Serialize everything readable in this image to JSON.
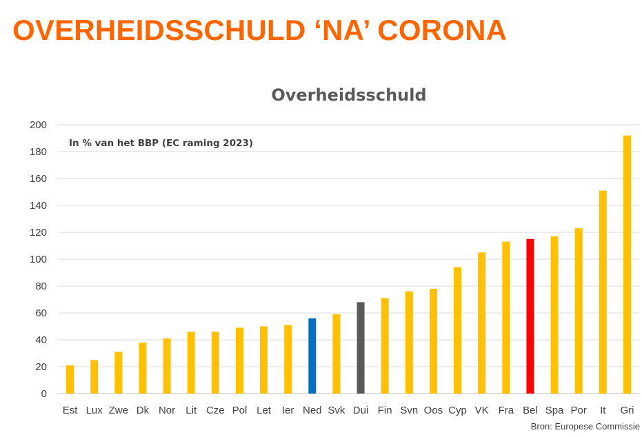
{
  "slide": {
    "title": "OVERHEIDSSCHULD ‘NA’ CORONA",
    "title_color": "#ff6600"
  },
  "chart_data": {
    "type": "bar",
    "title": "Overheidsschuld",
    "annotation": "In % van het BBP (EC raming 2023)",
    "source": "Bron: Europese Commissie",
    "xlabel": "",
    "ylabel": "",
    "ylim": [
      0,
      200
    ],
    "yticks": [
      0,
      20,
      40,
      60,
      80,
      100,
      120,
      140,
      160,
      180,
      200
    ],
    "grid": true,
    "categories": [
      "Est",
      "Lux",
      "Zwe",
      "Dk",
      "Nor",
      "Lit",
      "Cze",
      "Pol",
      "Let",
      "Ier",
      "Ned",
      "Svk",
      "Dui",
      "Fin",
      "Svn",
      "Oos",
      "Cyp",
      "VK",
      "Fra",
      "Bel",
      "Spa",
      "Por",
      "It",
      "Gri"
    ],
    "values": [
      21,
      25,
      31,
      38,
      41,
      46,
      46,
      49,
      50,
      51,
      56,
      59,
      68,
      71,
      76,
      78,
      94,
      105,
      113,
      115,
      117,
      123,
      151,
      192
    ],
    "default_color": "#ffc000",
    "highlight_colors": {
      "Ned": "#0070c0",
      "Dui": "#595959",
      "Bel": "#ff0000"
    }
  }
}
